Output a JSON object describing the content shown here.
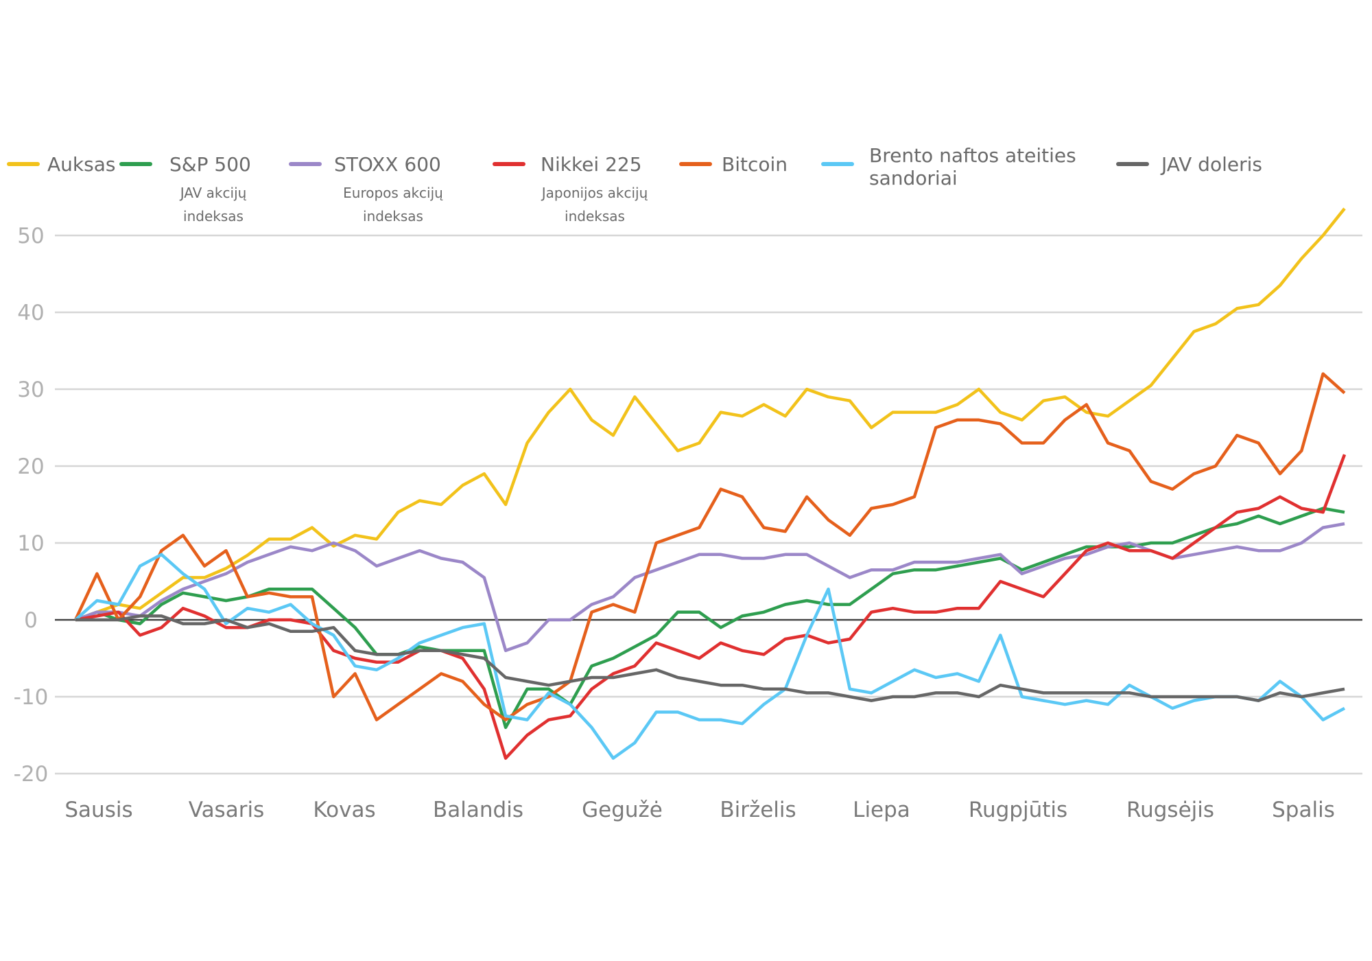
{
  "chart_data": {
    "type": "line",
    "title": "",
    "xlabel": "",
    "ylabel": "",
    "ylim": [
      -20,
      50
    ],
    "yticks": [
      "50",
      "40",
      "30",
      "20",
      "10",
      "0",
      "-10",
      "-20"
    ],
    "ytick_values": [
      50,
      40,
      30,
      20,
      10,
      0,
      -10,
      -20
    ],
    "grid": true,
    "legend_placement": "top",
    "month_labels": [
      "Sausis",
      "Vasaris",
      "Kovas",
      "Balandis",
      "Gegužė",
      "Birželis",
      "Liepa",
      "Rugpjūtis",
      "Rugsėjis",
      "Spalis"
    ],
    "x": [
      "01-02",
      "01-07",
      "01-12",
      "01-17",
      "01-22",
      "01-27",
      "02-01",
      "02-06",
      "02-11",
      "02-16",
      "02-21",
      "02-26",
      "03-03",
      "03-08",
      "03-13",
      "03-18",
      "03-23",
      "03-28",
      "04-02",
      "04-07",
      "04-12",
      "04-17",
      "04-22",
      "04-27",
      "05-02",
      "05-07",
      "05-12",
      "05-17",
      "05-22",
      "05-27",
      "06-01",
      "06-06",
      "06-11",
      "06-16",
      "06-21",
      "06-26",
      "07-01",
      "07-06",
      "07-11",
      "07-16",
      "07-21",
      "07-26",
      "07-31",
      "08-05",
      "08-10",
      "08-15",
      "08-20",
      "08-25",
      "08-30",
      "09-04",
      "09-09",
      "09-14",
      "09-19",
      "09-24",
      "09-29",
      "10-04",
      "10-09",
      "10-14",
      "10-19",
      "10-24"
    ],
    "series": [
      {
        "name": "Auksas",
        "sublabel": "",
        "color": "#f2c21b",
        "values": [
          0,
          1,
          2,
          1.5,
          3.5,
          5.5,
          5.5,
          6.7,
          8.4,
          10.5,
          10.5,
          12,
          9.6,
          11,
          10.5,
          14,
          15.5,
          15,
          17.5,
          19,
          15,
          23,
          27,
          30,
          26,
          24,
          29,
          25.5,
          22,
          23,
          27,
          26.5,
          28,
          26.5,
          30,
          29,
          28.5,
          25,
          27,
          27,
          27,
          28,
          30,
          27,
          26,
          28.5,
          29,
          27,
          26.5,
          28.5,
          30.5,
          34,
          37.5,
          38.5,
          40.5,
          41,
          43.5,
          47,
          50,
          53.5
        ]
      },
      {
        "name": "S&P 500",
        "sublabel": [
          "JAV akcijų",
          "indeksas"
        ],
        "color": "#2e9e4f",
        "values": [
          0,
          1,
          0,
          -0.5,
          2,
          3.5,
          3,
          2.5,
          3,
          4,
          4,
          4,
          1.5,
          -1,
          -4.5,
          -4.5,
          -3.5,
          -4,
          -4,
          -4,
          -14,
          -9,
          -9,
          -11,
          -6,
          -5,
          -3.5,
          -2,
          1,
          1,
          -1,
          0.5,
          1,
          2,
          2.5,
          2,
          2,
          4,
          6,
          6.5,
          6.5,
          7,
          7.5,
          8,
          6.5,
          7.5,
          8.5,
          9.5,
          9.5,
          9.5,
          10,
          10,
          11,
          12,
          12.5,
          13.5,
          12.5,
          13.5,
          14.5,
          14
        ]
      },
      {
        "name": "STOXX 600",
        "sublabel": [
          "Europos akcijų",
          "indeksas"
        ],
        "color": "#9b87c8",
        "values": [
          0,
          1,
          1,
          0.5,
          2.5,
          4,
          5,
          6,
          7.5,
          8.5,
          9.5,
          9,
          10,
          9,
          7,
          8,
          9,
          8,
          7.5,
          5.5,
          -4,
          -3,
          0,
          0,
          2,
          3,
          5.5,
          6.5,
          7.5,
          8.5,
          8.5,
          8,
          8,
          8.5,
          8.5,
          7,
          5.5,
          6.5,
          6.5,
          7.5,
          7.5,
          7.5,
          8,
          8.5,
          6,
          7,
          8,
          8.5,
          9.5,
          10,
          9,
          8,
          8.5,
          9,
          9.5,
          9,
          9,
          10,
          12,
          12.5
        ]
      },
      {
        "name": "Nikkei 225",
        "sublabel": [
          "Japonijos akcijų",
          "indeksas"
        ],
        "color": "#e03030",
        "values": [
          0,
          0.5,
          1,
          -2,
          -1,
          1.5,
          0.5,
          -1,
          -1,
          0,
          0,
          -0.5,
          -4,
          -5,
          -5.5,
          -5.5,
          -4,
          -4,
          -5,
          -9,
          -18,
          -15,
          -13,
          -12.5,
          -9,
          -7,
          -6,
          -3,
          -4,
          -5,
          -3,
          -4,
          -4.5,
          -2.5,
          -2,
          -3,
          -2.5,
          1,
          1.5,
          1,
          1,
          1.5,
          1.5,
          5,
          4,
          3,
          6,
          9,
          10,
          9,
          9,
          8,
          10,
          12,
          14,
          14.5,
          16,
          14.5,
          14,
          21.5
        ]
      },
      {
        "name": "Bitcoin",
        "sublabel": "",
        "color": "#e5601c",
        "values": [
          0,
          6,
          0,
          3,
          9,
          11,
          7,
          9,
          3,
          3.5,
          3,
          3,
          -10,
          -7,
          -13,
          -11,
          -9,
          -7,
          -8,
          -11,
          -13,
          -11,
          -10,
          -8,
          1,
          2,
          1,
          10,
          11,
          12,
          17,
          16,
          12,
          11.5,
          16,
          13,
          11,
          14.5,
          15,
          16,
          25,
          26,
          26,
          25.5,
          23,
          23,
          26,
          28,
          23,
          22,
          18,
          17,
          19,
          20,
          24,
          23,
          19,
          22,
          32,
          29.5
        ]
      },
      {
        "name": "Brento naftos ateities sandoriai",
        "name_lines": [
          "Brento naftos ateities",
          "sandoriai"
        ],
        "sublabel": "",
        "color": "#5bc8f5",
        "values": [
          0,
          2.5,
          2,
          7,
          8.5,
          6,
          4,
          -0.5,
          1.5,
          1,
          2,
          -0.5,
          -2,
          -6,
          -6.5,
          -5,
          -3,
          -2,
          -1,
          -0.5,
          -12.5,
          -13,
          -9.5,
          -11,
          -14,
          -18,
          -16,
          -12,
          -12,
          -13,
          -13,
          -13.5,
          -11,
          -9,
          -2,
          4,
          -9,
          -9.5,
          -8,
          -6.5,
          -7.5,
          -7,
          -8,
          -2,
          -10,
          -10.5,
          -11,
          -10.5,
          -11,
          -8.5,
          -10,
          -11.5,
          -10.5,
          -10,
          -10,
          -10.5,
          -8,
          -10,
          -13,
          -11.5
        ]
      },
      {
        "name": "JAV doleris",
        "sublabel": "",
        "color": "#666666",
        "values": [
          0,
          0,
          0,
          0.5,
          0.5,
          -0.5,
          -0.5,
          0,
          -1,
          -0.5,
          -1.5,
          -1.5,
          -1,
          -4,
          -4.5,
          -4.5,
          -4,
          -4,
          -4.5,
          -5,
          -7.5,
          -8,
          -8.5,
          -8,
          -7.5,
          -7.5,
          -7,
          -6.5,
          -7.5,
          -8,
          -8.5,
          -8.5,
          -9,
          -9,
          -9.5,
          -9.5,
          -10,
          -10.5,
          -10,
          -10,
          -9.5,
          -9.5,
          -10,
          -8.5,
          -9,
          -9.5,
          -9.5,
          -9.5,
          -9.5,
          -9.5,
          -10,
          -10,
          -10,
          -10,
          -10,
          -10.5,
          -9.5,
          -10,
          -9.5,
          -9
        ]
      }
    ]
  }
}
